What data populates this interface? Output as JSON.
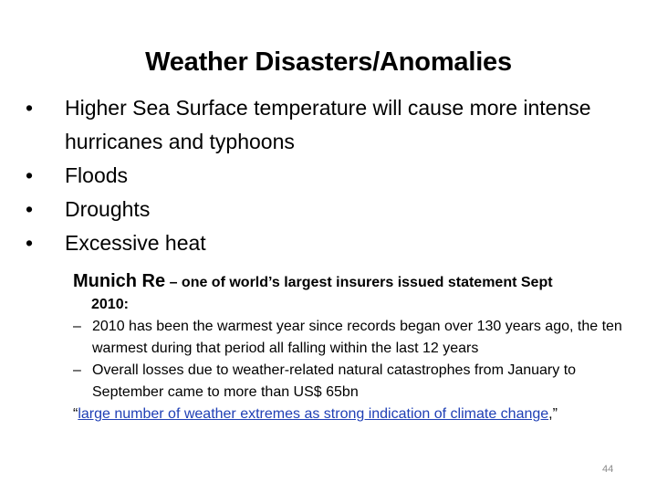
{
  "title": "Weather Disasters/Anomalies",
  "bullets": [
    "Higher Sea Surface temperature will cause more intense hurricanes and typhoons",
    "Floods",
    "Droughts",
    "Excessive heat"
  ],
  "bullet_glyph": "•",
  "munich": {
    "name": "Munich Re",
    "rest": " – one of world’s largest insurers issued statement Sept",
    "year": "2010:",
    "dash_glyph": "–",
    "points": [
      "2010 has been the warmest year since records began over 130 years ago, the ten warmest during that period all falling within the last 12 years",
      "Overall losses due to weather-related natural catastrophes from January to September came to more than US$ 65bn"
    ],
    "quote_open": "“",
    "quote_link": "large number of weather extremes as strong indication of climate change",
    "quote_close": ",”"
  },
  "page_number": "44",
  "colors": {
    "link": "#1f3fb5",
    "page_number": "#8a8a8a"
  }
}
